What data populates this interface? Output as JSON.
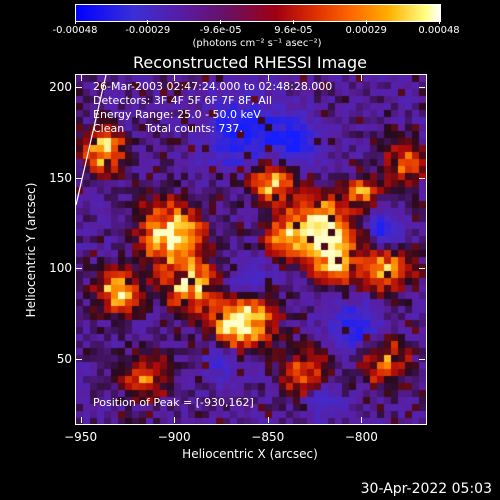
{
  "colorbar": {
    "labels": [
      "-0.00048",
      "-0.00029",
      "-9.6e-05",
      "9.6e-05",
      "0.00029",
      "0.00048"
    ],
    "units": "(photons cm⁻² s⁻¹ asec⁻²)",
    "colors": [
      "#0000ff",
      "#5a1aa0",
      "#a00010",
      "#ff6a00",
      "#ffff80",
      "#ffffff"
    ]
  },
  "title": "Reconstructed RHESSI Image",
  "info": {
    "time": "26-Mar-2003 02:47:24.000 to 02:48:28.000",
    "detectors": "Detectors: 3F 4F 5F 6F 7F 8F, All",
    "energy": "Energy Range: 25.0 - 50.0 keV",
    "clean": "Clean      Total counts: 737."
  },
  "peak": "Position of Peak = [-930,162]",
  "axes": {
    "xlabel": "Heliocentric X (arcsec)",
    "ylabel": "Heliocentric Y (arcsec)",
    "xticks": [
      "−950",
      "−900",
      "−850",
      "−800"
    ],
    "yticks": [
      "200",
      "150",
      "100",
      "50"
    ],
    "xticks_values": [
      -950,
      -900,
      -850,
      -800
    ],
    "yticks_values": [
      200,
      150,
      100,
      50
    ],
    "xlim": [
      -953,
      -766
    ],
    "ylim": [
      15,
      207
    ]
  },
  "footer": {
    "date": "30-Apr-2022 05:03"
  }
}
